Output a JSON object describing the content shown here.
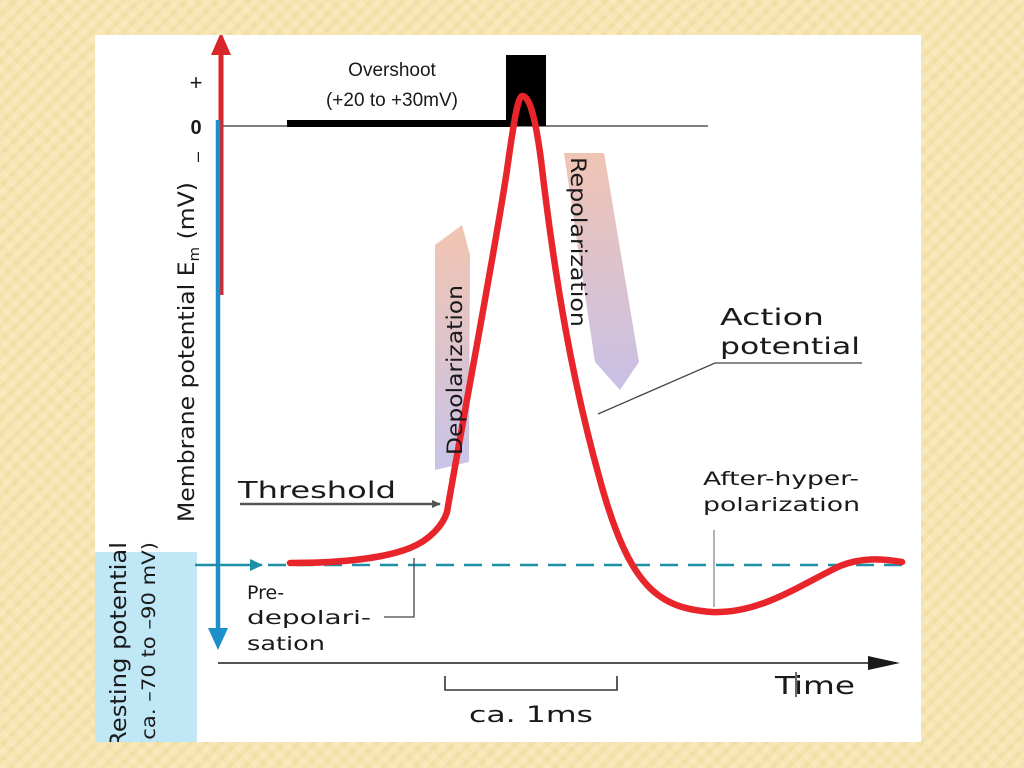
{
  "diagram": {
    "overshoot_line1": "Overshoot",
    "overshoot_line2": "(+20 to +30mV)",
    "y_tick_plus": "+",
    "y_tick_zero": "0",
    "y_tick_minus": "–",
    "y_axis_label": "Membrane potential E",
    "y_axis_label_sub": "m",
    "y_axis_label_unit": " (mV)",
    "depolarization": "Depolarization",
    "repolarization": "Repolarization",
    "action_potential_line1": "Action",
    "action_potential_line2": "potential",
    "threshold": "Threshold",
    "after_hyper_line1": "After-hyper-",
    "after_hyper_line2": "polarization",
    "resting_line1": "Resting potential",
    "resting_line2": "(ca. –70 to –90 mV)",
    "predepol_line1": "Pre-",
    "predepol_line2": "depolari-",
    "predepol_line3": "sation",
    "time_label": "Time",
    "duration_label": "ca. 1ms"
  },
  "colors": {
    "curve": "#e8252b",
    "y_axis_upper": "#d9262b",
    "y_axis_lower": "#1d8fc9",
    "resting_dashed": "#1f8fa6",
    "resting_box": "#bfe7f6",
    "depol_arrow_top": "#f2c4b0",
    "depol_arrow_bottom": "#c8c4e8",
    "repol_arrow_top": "#f0c4b4",
    "repol_arrow_bottom": "#c8c0e6"
  }
}
